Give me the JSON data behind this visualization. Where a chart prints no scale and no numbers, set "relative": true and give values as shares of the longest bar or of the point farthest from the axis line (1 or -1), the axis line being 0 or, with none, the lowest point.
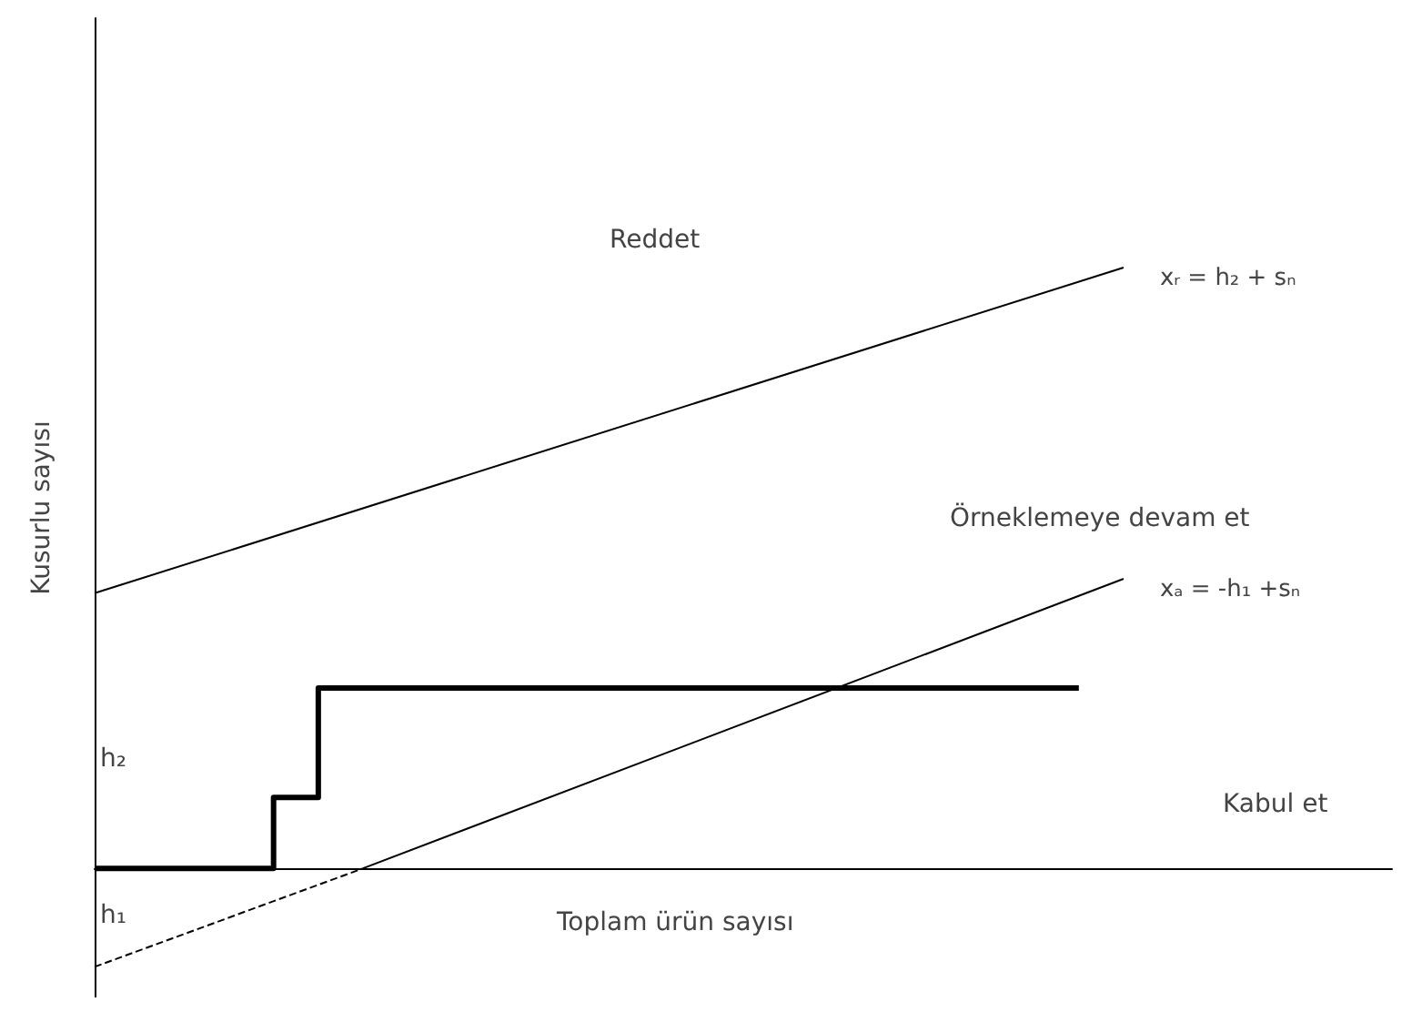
{
  "chart_data": {
    "type": "line",
    "relative": true,
    "xlabel": "Toplam ürün sayısı",
    "ylabel": "Kusurlu sayısı",
    "tick_labels": false,
    "grid": false,
    "legend": false,
    "marker": "none",
    "categories": [
      null,
      null,
      null,
      null,
      null,
      null,
      null,
      null,
      null,
      null,
      null,
      null,
      null,
      null,
      null,
      null,
      null,
      null,
      null,
      null,
      null,
      null,
      null,
      null,
      null,
      null,
      null,
      null,
      null,
      null
    ],
    "series": [
      {
        "name": "xᵣ = h₂ + sₙ",
        "color": "#000000",
        "values": [
          0.458,
          null,
          null,
          null,
          null,
          null,
          null,
          null,
          null,
          null,
          null,
          null,
          null,
          null,
          null,
          null,
          null,
          null,
          null,
          null,
          null,
          null,
          null,
          1,
          null,
          null,
          null,
          null,
          null,
          null
        ]
      },
      {
        "color": "#000000",
        "line_style": "dashed",
        "values": [
          -0.164,
          null,
          null,
          null,
          null,
          null,
          0,
          null,
          null,
          null,
          null,
          null,
          null,
          null,
          null,
          null,
          null,
          null,
          null,
          null,
          null,
          null,
          null,
          null,
          null,
          null,
          null,
          null,
          null,
          null
        ]
      },
      {
        "name": "xₐ = -h₁ +sₙ",
        "color": "#000000",
        "values": [
          null,
          null,
          null,
          null,
          null,
          null,
          0,
          null,
          null,
          null,
          null,
          null,
          null,
          null,
          null,
          null,
          null,
          null,
          null,
          null,
          null,
          null,
          null,
          0.482,
          null,
          null,
          null,
          null,
          null,
          null
        ]
      },
      {
        "type": "step",
        "color": "#000000",
        "values": [
          0,
          null,
          null,
          null,
          0.118,
          0.3,
          null,
          null,
          null,
          null,
          null,
          null,
          null,
          null,
          null,
          null,
          null,
          null,
          null,
          null,
          null,
          null,
          0.3,
          null,
          null,
          null,
          null,
          null,
          null,
          null
        ]
      }
    ],
    "annotations": [
      "Reddet",
      "Örneklemeye devam et",
      "Kabul et",
      "h₂",
      "h₁"
    ]
  }
}
